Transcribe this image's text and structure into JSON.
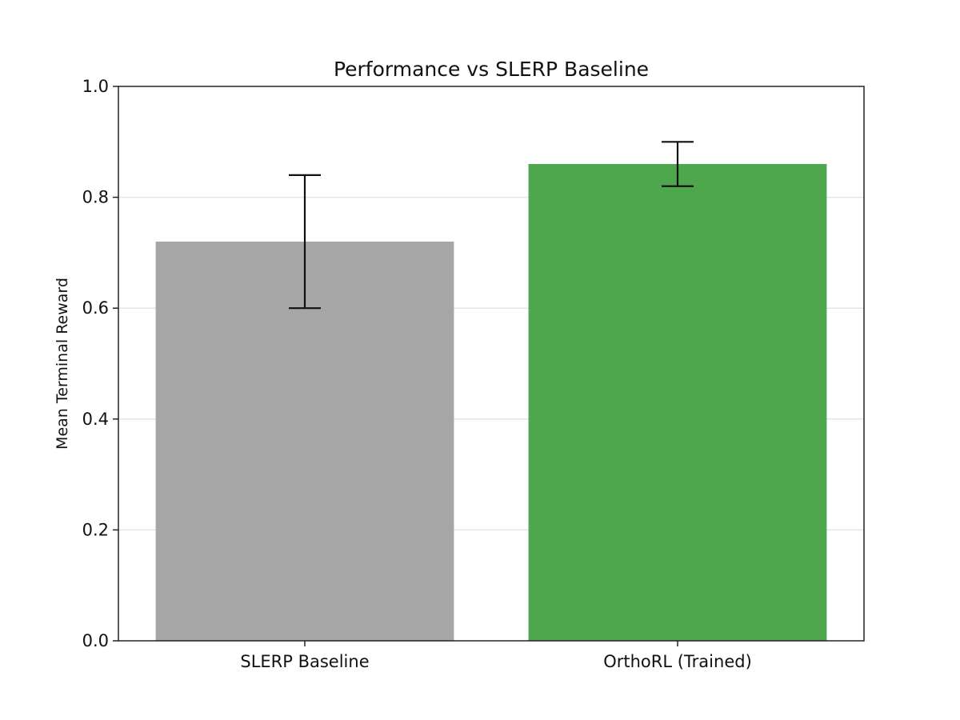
{
  "chart_data": {
    "type": "bar",
    "title": "Performance vs SLERP Baseline",
    "xlabel": "",
    "ylabel": "Mean Terminal Reward",
    "categories": [
      "SLERP Baseline",
      "OrthoRL (Trained)"
    ],
    "values": [
      0.72,
      0.86
    ],
    "error_lower": [
      0.6,
      0.82
    ],
    "error_upper": [
      0.84,
      0.9
    ],
    "colors": [
      "#a6a6a6",
      "#4ea64d"
    ],
    "ylim": [
      0,
      1.0
    ],
    "yticks": [
      0.0,
      0.2,
      0.4,
      0.6,
      0.8,
      1.0
    ],
    "ytick_labels": [
      "0.0",
      "0.2",
      "0.4",
      "0.6",
      "0.8",
      "1.0"
    ],
    "grid": "horizontal",
    "legend": "none"
  }
}
